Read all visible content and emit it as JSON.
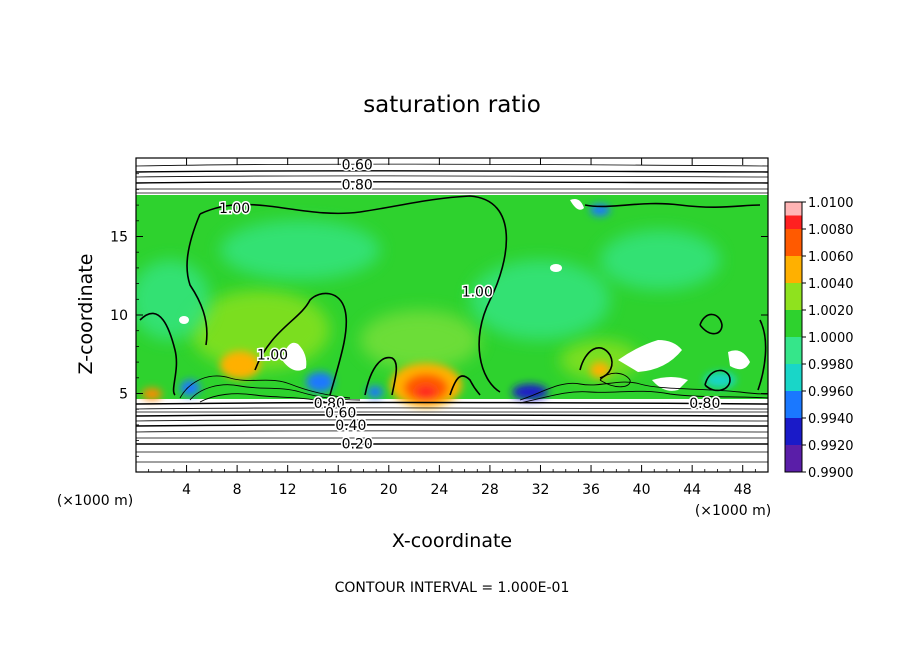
{
  "chart_data": {
    "type": "heatmap",
    "title": "saturation ratio",
    "xlabel": "X-coordinate",
    "ylabel": "Z-coordinate",
    "x_unit": "(×1000 m)",
    "y_unit": "(×1000 m)",
    "footer": "CONTOUR INTERVAL = 1.000E-01",
    "xlim": [
      0,
      50
    ],
    "ylim": [
      0,
      20
    ],
    "x_ticks": [
      4,
      8,
      12,
      16,
      20,
      24,
      28,
      32,
      36,
      40,
      44,
      48
    ],
    "y_ticks": [
      5,
      10,
      15
    ],
    "colorbar": {
      "levels": [
        "0.9900",
        "0.9920",
        "0.9940",
        "0.9960",
        "0.9980",
        "1.0000",
        "1.0020",
        "1.0040",
        "1.0060",
        "1.0080",
        "1.0100"
      ],
      "colors": [
        "#5a1ea8",
        "#1a1ac8",
        "#1a78ff",
        "#19d6c8",
        "#35e68a",
        "#2ed22e",
        "#8fe21e",
        "#ffb000",
        "#ff5a00",
        "#ff2020",
        "#ffb4b4"
      ]
    },
    "field_region": {
      "description_values": "colored saturation-ratio field between z≈4.7 and z≈17.5 (×1000 m)",
      "z_bottom": 4.7,
      "z_top": 17.5,
      "background_value": 1.0
    },
    "contour_labels": [
      {
        "text": "0.60",
        "x": 17.5,
        "z": 19.6
      },
      {
        "text": "0.80",
        "x": 17.5,
        "z": 18.3
      },
      {
        "text": "1.00",
        "x": 7.8,
        "z": 16.8
      },
      {
        "text": "1.00",
        "x": 27.0,
        "z": 11.5
      },
      {
        "text": "1.00",
        "x": 10.8,
        "z": 7.5
      },
      {
        "text": "0.80",
        "x": 15.3,
        "z": 4.4
      },
      {
        "text": "0.60",
        "x": 16.2,
        "z": 3.8
      },
      {
        "text": "0.40",
        "x": 17.0,
        "z": 3.0
      },
      {
        "text": "0.20",
        "x": 17.5,
        "z": 1.8
      },
      {
        "text": "0.80",
        "x": 45.0,
        "z": 4.4
      }
    ]
  }
}
